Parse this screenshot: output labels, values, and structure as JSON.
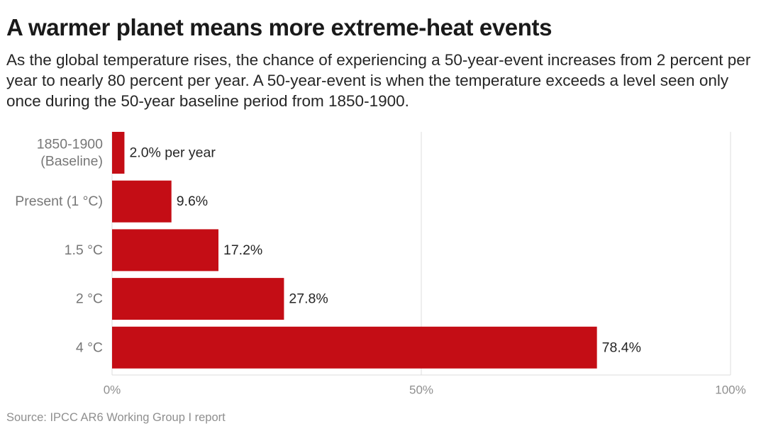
{
  "title": "A warmer planet means more extreme-heat events",
  "subtitle": "As the global temperature rises, the chance of experiencing a 50-year-event increases from 2 percent per year to nearly 80 percent per year. A 50-year-event is when the temperature exceeds a level seen only once during the 50-year baseline period from 1850-1900.",
  "source": "Source: IPCC AR6 Working Group I report",
  "colors": {
    "bar": "#c40d15",
    "grid": "#dcdcdc",
    "tick_text": "#8f8f8f",
    "category_text": "#777777",
    "value_text": "#262626"
  },
  "chart_data": {
    "type": "bar",
    "orientation": "horizontal",
    "categories": [
      [
        "1850-1900",
        "(Baseline)"
      ],
      [
        "Present (1 °C)"
      ],
      [
        "1.5 °C"
      ],
      [
        "2 °C"
      ],
      [
        "4 °C"
      ]
    ],
    "values": [
      2.0,
      9.6,
      17.2,
      27.8,
      78.4
    ],
    "value_labels": [
      "2.0% per year",
      "9.6%",
      "17.2%",
      "27.8%",
      "78.4%"
    ],
    "xlim": [
      0,
      100
    ],
    "xticks": [
      0,
      50,
      100
    ],
    "xtick_labels": [
      "0%",
      "50%",
      "100%"
    ],
    "grid": true,
    "unit": "%"
  }
}
